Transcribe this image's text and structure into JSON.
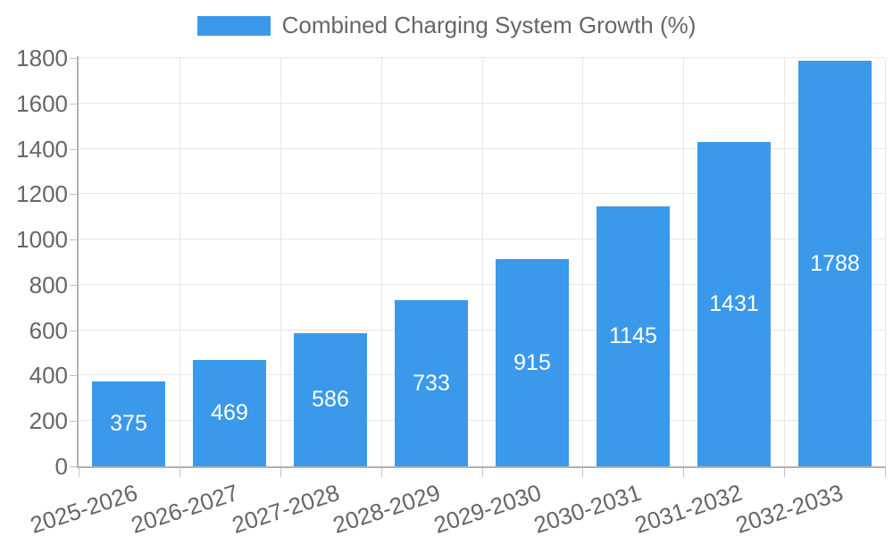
{
  "chart_data": {
    "type": "bar",
    "title": "",
    "xlabel": "",
    "ylabel": "",
    "categories": [
      "2025-2026",
      "2026-2027",
      "2027-2028",
      "2028-2029",
      "2029-2030",
      "2030-2031",
      "2031-2032",
      "2032-2033"
    ],
    "series": [
      {
        "name": "Combined Charging System Growth (%)",
        "values": [
          375,
          469,
          586,
          733,
          915,
          1145,
          1431,
          1788
        ]
      }
    ],
    "value_labels": [
      "375",
      "469",
      "586",
      "733",
      "915",
      "1145",
      "1431",
      "1788"
    ],
    "ylim": [
      0,
      1800
    ],
    "ytick_step": 200,
    "yticks": [
      "0",
      "200",
      "400",
      "600",
      "800",
      "1000",
      "1200",
      "1400",
      "1600",
      "1800"
    ],
    "grid": true,
    "legend_position": "top",
    "colors": {
      "bar": "#3b99ec",
      "bar_value_text": "#ffffff",
      "axis_text": "#666666",
      "gridline": "#e6e6e6",
      "axis_line": "#b2b2b2",
      "tick_mark": "#c2c2c2",
      "background": "#ffffff"
    }
  }
}
